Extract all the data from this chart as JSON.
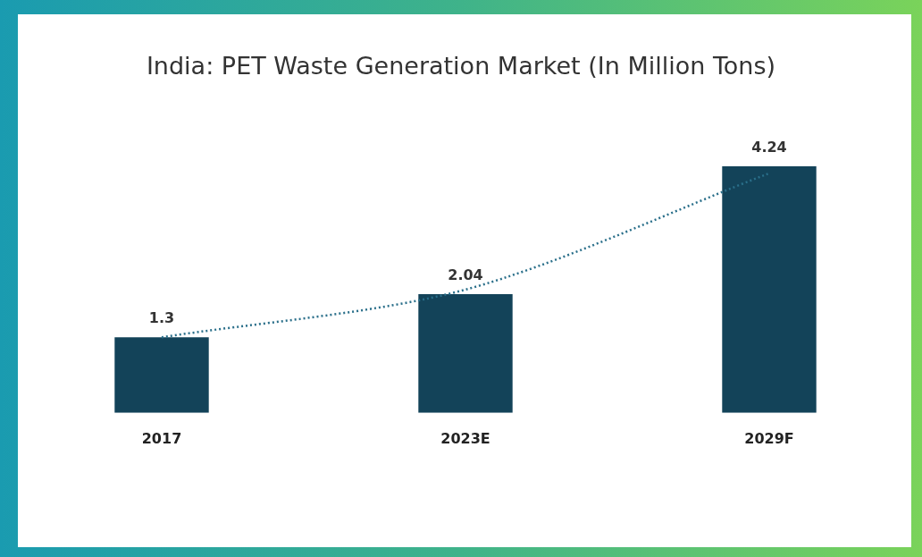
{
  "chart_data": {
    "type": "bar",
    "title": "India: PET Waste Generation Market (In Million Tons)",
    "categories": [
      "2017",
      "2023E",
      "2029F"
    ],
    "series": [
      {
        "color": "#134359",
        "values": [
          1.3,
          2.04,
          4.24
        ],
        "value_labels": [
          "1.3",
          "2.04",
          "4.24"
        ]
      },
      {
        "type": "line",
        "color": "#2a6f8a",
        "line_style": "dotted",
        "values": [
          1.3,
          2.12,
          4.12
        ]
      }
    ],
    "legend": false,
    "grid": false
  }
}
